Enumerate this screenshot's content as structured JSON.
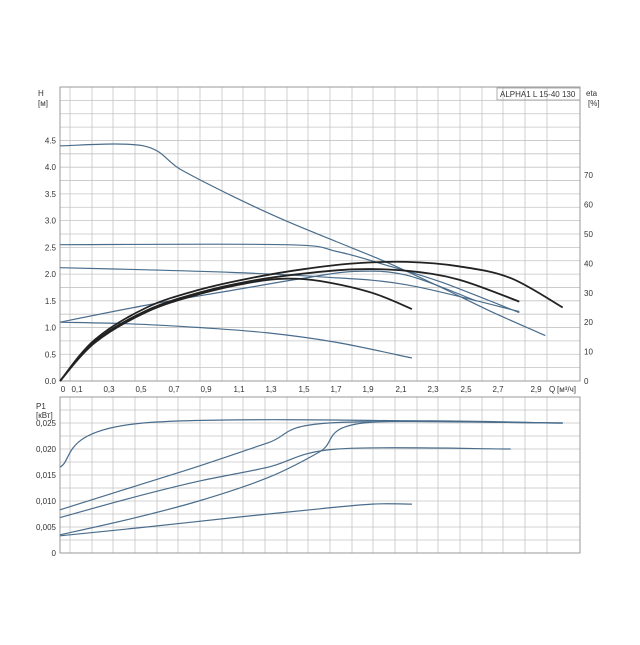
{
  "chart_data": [
    {
      "type": "line",
      "pump_label": "ALPHA1 L 15-40 130",
      "ylabel": "H",
      "yunit": "[м]",
      "y2label": "eta",
      "y2unit": "[%]",
      "xlabel": "Q",
      "xunit": "[м³/ч]",
      "xlim": [
        0,
        3.0
      ],
      "ylim": [
        0,
        5.5
      ],
      "y2lim": [
        0,
        100
      ],
      "grid": true,
      "x_ticks": [
        "0",
        "0,1",
        "0,3",
        "0,5",
        "0,7",
        "0,9",
        "1,1",
        "1,3",
        "1,5",
        "1,7",
        "1,9",
        "2,1",
        "2,3",
        "2,5",
        "2,7",
        "2,9"
      ],
      "y_ticks": [
        "0.0",
        "0.5",
        "1.0",
        "1.5",
        "2.0",
        "2.5",
        "3.0",
        "3.5",
        "4.0",
        "4.5"
      ],
      "y2_ticks": [
        "0",
        "10",
        "20",
        "30",
        "40",
        "50",
        "60",
        "70"
      ],
      "y_tick_values": [
        0,
        0.5,
        1.0,
        1.5,
        2.0,
        2.5,
        3.0,
        3.5,
        4.0,
        4.5
      ],
      "y2_tick_values": [
        0,
        10,
        20,
        30,
        40,
        50,
        60,
        70
      ],
      "series": [
        {
          "role": "head",
          "color": "#4a6d8c",
          "x": [
            0,
            0.48,
            0.7,
            1.0,
            1.3,
            1.6,
            1.9,
            2.2,
            2.5,
            2.8
          ],
          "values": [
            4.4,
            4.4,
            3.95,
            3.45,
            3.0,
            2.6,
            2.2,
            1.75,
            1.28,
            0.85
          ]
        },
        {
          "role": "head",
          "color": "#4a6d8c",
          "x": [
            0,
            1.3,
            1.6,
            1.9,
            2.2,
            2.65
          ],
          "values": [
            2.55,
            2.55,
            2.42,
            2.15,
            1.85,
            1.28
          ]
        },
        {
          "role": "head",
          "color": "#4a6d8c",
          "x": [
            0,
            0.5,
            1.0,
            1.5,
            2.0,
            2.65
          ],
          "values": [
            2.12,
            2.08,
            2.03,
            1.95,
            1.8,
            1.3
          ]
        },
        {
          "role": "head",
          "color": "#4a6d8c",
          "x": [
            0,
            0.4,
            0.8,
            1.2,
            1.6,
            2.03
          ],
          "values": [
            1.1,
            1.07,
            1.0,
            0.9,
            0.72,
            0.43
          ]
        },
        {
          "role": "head",
          "color": "#4a6d8c",
          "x": [
            0,
            0.5,
            1.0,
            1.4,
            1.7,
            2.0,
            2.4
          ],
          "values": [
            1.1,
            1.42,
            1.7,
            1.92,
            2.05,
            1.98,
            1.5
          ]
        },
        {
          "role": "efficiency",
          "color": "#222222",
          "x": [
            0,
            0.2,
            0.5,
            0.8,
            1.1,
            1.4,
            1.7,
            2.0,
            2.3,
            2.6,
            2.9
          ],
          "values": [
            0,
            14,
            25,
            31,
            35,
            38,
            40,
            40.5,
            39,
            35,
            25
          ]
        },
        {
          "role": "efficiency",
          "color": "#222222",
          "x": [
            0,
            0.2,
            0.5,
            0.8,
            1.1,
            1.4,
            1.7,
            2.0,
            2.3,
            2.65
          ],
          "values": [
            0,
            13.5,
            24,
            30,
            34,
            36.5,
            38,
            37.5,
            34.5,
            27
          ]
        },
        {
          "role": "efficiency",
          "color": "#222222",
          "x": [
            0,
            0.2,
            0.5,
            0.8,
            1.1,
            1.3,
            1.5,
            1.8,
            2.03
          ],
          "values": [
            0,
            13,
            23.5,
            29.5,
            33.5,
            34.8,
            34,
            30,
            24.5
          ]
        }
      ]
    },
    {
      "type": "line",
      "ylabel": "P1",
      "yunit": "[кВт]",
      "xlim": [
        0,
        3.0
      ],
      "ylim": [
        0,
        0.03
      ],
      "grid": true,
      "y_ticks": [
        "0",
        "0,005",
        "0,010",
        "0,015",
        "0,020",
        "0,025"
      ],
      "y_tick_values": [
        0,
        0.005,
        0.01,
        0.015,
        0.02,
        0.025
      ],
      "series": [
        {
          "color": "#4a6d8c",
          "x": [
            0,
            0.48,
            2.9
          ],
          "values": [
            0.0165,
            0.025,
            0.025
          ]
        },
        {
          "color": "#4a6d8c",
          "x": [
            0,
            0.4,
            0.8,
            1.2,
            1.55,
            2.9
          ],
          "values": [
            0.0083,
            0.0125,
            0.0167,
            0.0212,
            0.025,
            0.025
          ]
        },
        {
          "color": "#4a6d8c",
          "x": [
            0,
            0.4,
            0.8,
            1.2,
            1.6,
            2.6
          ],
          "values": [
            0.0068,
            0.0105,
            0.0138,
            0.0165,
            0.02,
            0.02
          ]
        },
        {
          "color": "#4a6d8c",
          "x": [
            0,
            0.4,
            0.8,
            1.2,
            1.5,
            1.75,
            2.9
          ],
          "values": [
            0.0035,
            0.0065,
            0.01,
            0.0145,
            0.0195,
            0.025,
            0.025
          ]
        },
        {
          "color": "#4a6d8c",
          "x": [
            0,
            0.5,
            1.0,
            1.5,
            1.8,
            2.03
          ],
          "values": [
            0.0033,
            0.005,
            0.0068,
            0.0085,
            0.0094,
            0.0094
          ]
        }
      ]
    }
  ]
}
